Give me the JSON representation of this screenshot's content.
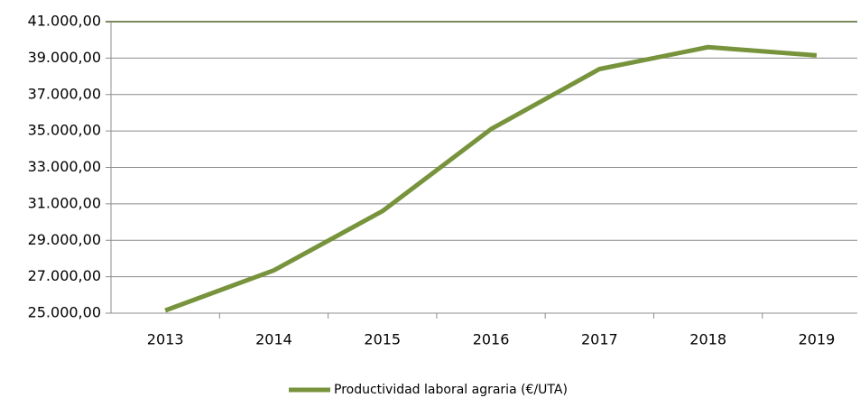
{
  "chart_data": {
    "type": "line",
    "categories": [
      "2013",
      "2014",
      "2015",
      "2016",
      "2017",
      "2018",
      "2019"
    ],
    "series": [
      {
        "name": "Productividad laboral agraria (€/UTA)",
        "color": "#77933c",
        "values": [
          25150,
          27350,
          30600,
          35100,
          38400,
          39600,
          39150
        ]
      }
    ],
    "ylim": [
      25000,
      41000
    ],
    "yticks": [
      {
        "value": 25000,
        "label": "25.000,00"
      },
      {
        "value": 27000,
        "label": "27.000,00"
      },
      {
        "value": 29000,
        "label": "29.000,00"
      },
      {
        "value": 31000,
        "label": "31.000,00"
      },
      {
        "value": 33000,
        "label": "33.000,00"
      },
      {
        "value": 35000,
        "label": "35.000,00"
      },
      {
        "value": 37000,
        "label": "37.000,00"
      },
      {
        "value": 39000,
        "label": "39.000,00"
      },
      {
        "value": 41000,
        "label": "41.000,00"
      }
    ],
    "grid": true,
    "legend": "bottom"
  }
}
